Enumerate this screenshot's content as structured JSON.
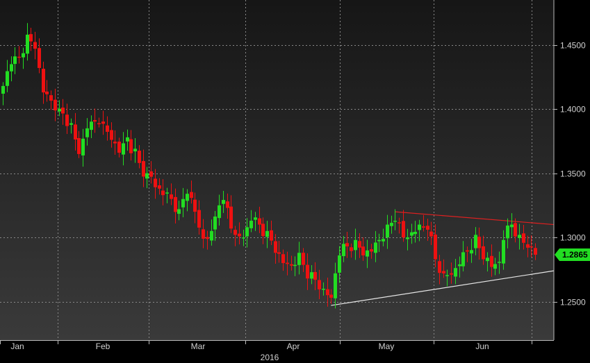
{
  "chart_data": {
    "type": "candlestick",
    "title": "",
    "year_label": "2016",
    "y_axis_position": "right",
    "ylim": [
      1.22,
      1.485
    ],
    "y_ticks": [
      "1.4500",
      "1.4000",
      "1.3500",
      "1.3000",
      "1.2500"
    ],
    "x_ticks": [
      "Jan",
      "Feb",
      "Mar",
      "Apr",
      "May",
      "Jun"
    ],
    "last_price_label": "1.2865",
    "grid": true,
    "colors": {
      "background_top": "#161616",
      "background_bottom": "#3a3a3a",
      "up": "#22dd22",
      "down": "#ee1111",
      "grid": "#888888",
      "resistance_line": "#e02020",
      "support_line": "#e6e6e6",
      "last_label_bg": "#22dd22"
    },
    "trendlines": [
      {
        "name": "resistance",
        "from": {
          "index": 98,
          "value": 1.32
        },
        "to": {
          "index": 138,
          "value": 1.31
        }
      },
      {
        "name": "support",
        "from": {
          "index": 82,
          "value": 1.247
        },
        "to": {
          "index": 138,
          "value": 1.274
        }
      }
    ],
    "waypoints": [
      [
        0,
        1.418
      ],
      [
        2,
        1.435
      ],
      [
        4,
        1.44
      ],
      [
        6,
        1.458
      ],
      [
        8,
        1.447
      ],
      [
        10,
        1.413
      ],
      [
        13,
        1.399
      ],
      [
        17,
        1.389
      ],
      [
        19,
        1.365
      ],
      [
        21,
        1.385
      ],
      [
        24,
        1.389
      ],
      [
        27,
        1.376
      ],
      [
        29,
        1.366
      ],
      [
        31,
        1.378
      ],
      [
        34,
        1.358
      ],
      [
        36,
        1.35
      ],
      [
        39,
        1.338
      ],
      [
        42,
        1.33
      ],
      [
        44,
        1.322
      ],
      [
        46,
        1.334
      ],
      [
        48,
        1.32
      ],
      [
        50,
        1.299
      ],
      [
        52,
        1.305
      ],
      [
        54,
        1.325
      ],
      [
        56,
        1.323
      ],
      [
        58,
        1.302
      ],
      [
        60,
        1.3
      ],
      [
        62,
        1.313
      ],
      [
        64,
        1.31
      ],
      [
        66,
        1.305
      ],
      [
        68,
        1.288
      ],
      [
        70,
        1.28
      ],
      [
        72,
        1.278
      ],
      [
        74,
        1.288
      ],
      [
        76,
        1.268
      ],
      [
        78,
        1.267
      ],
      [
        80,
        1.26
      ],
      [
        82,
        1.253
      ],
      [
        83,
        1.272
      ],
      [
        84,
        1.286
      ],
      [
        86,
        1.293
      ],
      [
        88,
        1.298
      ],
      [
        90,
        1.286
      ],
      [
        92,
        1.289
      ],
      [
        94,
        1.298
      ],
      [
        96,
        1.31
      ],
      [
        98,
        1.313
      ],
      [
        100,
        1.3
      ],
      [
        102,
        1.304
      ],
      [
        104,
        1.31
      ],
      [
        106,
        1.306
      ],
      [
        108,
        1.283
      ],
      [
        110,
        1.272
      ],
      [
        112,
        1.271
      ],
      [
        114,
        1.279
      ],
      [
        116,
        1.289
      ],
      [
        118,
        1.302
      ],
      [
        120,
        1.283
      ],
      [
        122,
        1.277
      ],
      [
        124,
        1.281
      ],
      [
        125,
        1.298
      ],
      [
        127,
        1.31
      ],
      [
        129,
        1.302
      ],
      [
        131,
        1.292
      ],
      [
        133,
        1.2865
      ]
    ]
  }
}
